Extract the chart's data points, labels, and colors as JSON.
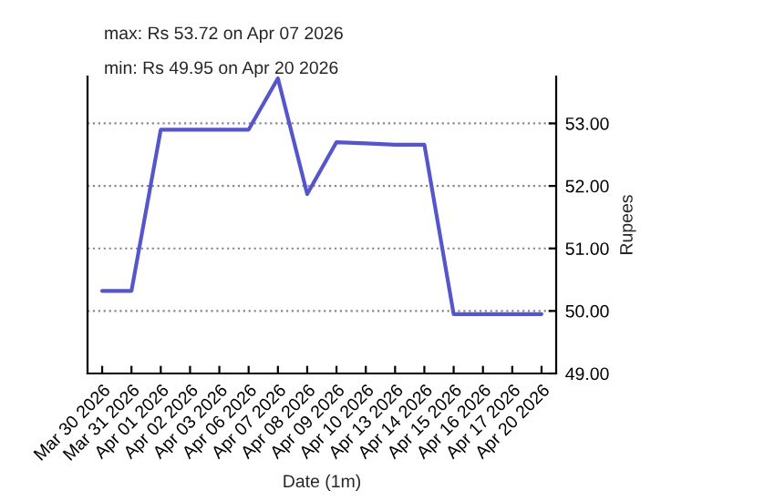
{
  "chart_data": {
    "type": "line",
    "xlabel": "Date (1m)",
    "ylabel": "Rupees",
    "annotations": [
      "max: Rs 53.72 on Apr 07 2026",
      "min: Rs 49.95 on Apr 20 2026"
    ],
    "categories": [
      "Mar 30 2026",
      "Mar 31 2026",
      "Apr 01 2026",
      "Apr 02 2026",
      "Apr 03 2026",
      "Apr 06 2026",
      "Apr 07 2026",
      "Apr 08 2026",
      "Apr 09 2026",
      "Apr 10 2026",
      "Apr 13 2026",
      "Apr 14 2026",
      "Apr 15 2026",
      "Apr 16 2026",
      "Apr 17 2026",
      "Apr 20 2026"
    ],
    "series": [
      {
        "color": "#5555cc",
        "values": [
          50.32,
          50.32,
          52.9,
          52.9,
          52.9,
          52.9,
          53.72,
          51.87,
          52.7,
          52.68,
          52.66,
          52.66,
          49.95,
          49.95,
          49.95,
          49.95
        ]
      }
    ],
    "ylim": [
      49,
      53.75
    ],
    "yticks": [
      {
        "value": 49,
        "label": "49.00"
      },
      {
        "value": 50,
        "label": "50.00"
      },
      {
        "value": 51,
        "label": "51.00"
      },
      {
        "value": 52,
        "label": "52.00"
      },
      {
        "value": 53,
        "label": "53.00"
      }
    ],
    "grid": "y"
  }
}
